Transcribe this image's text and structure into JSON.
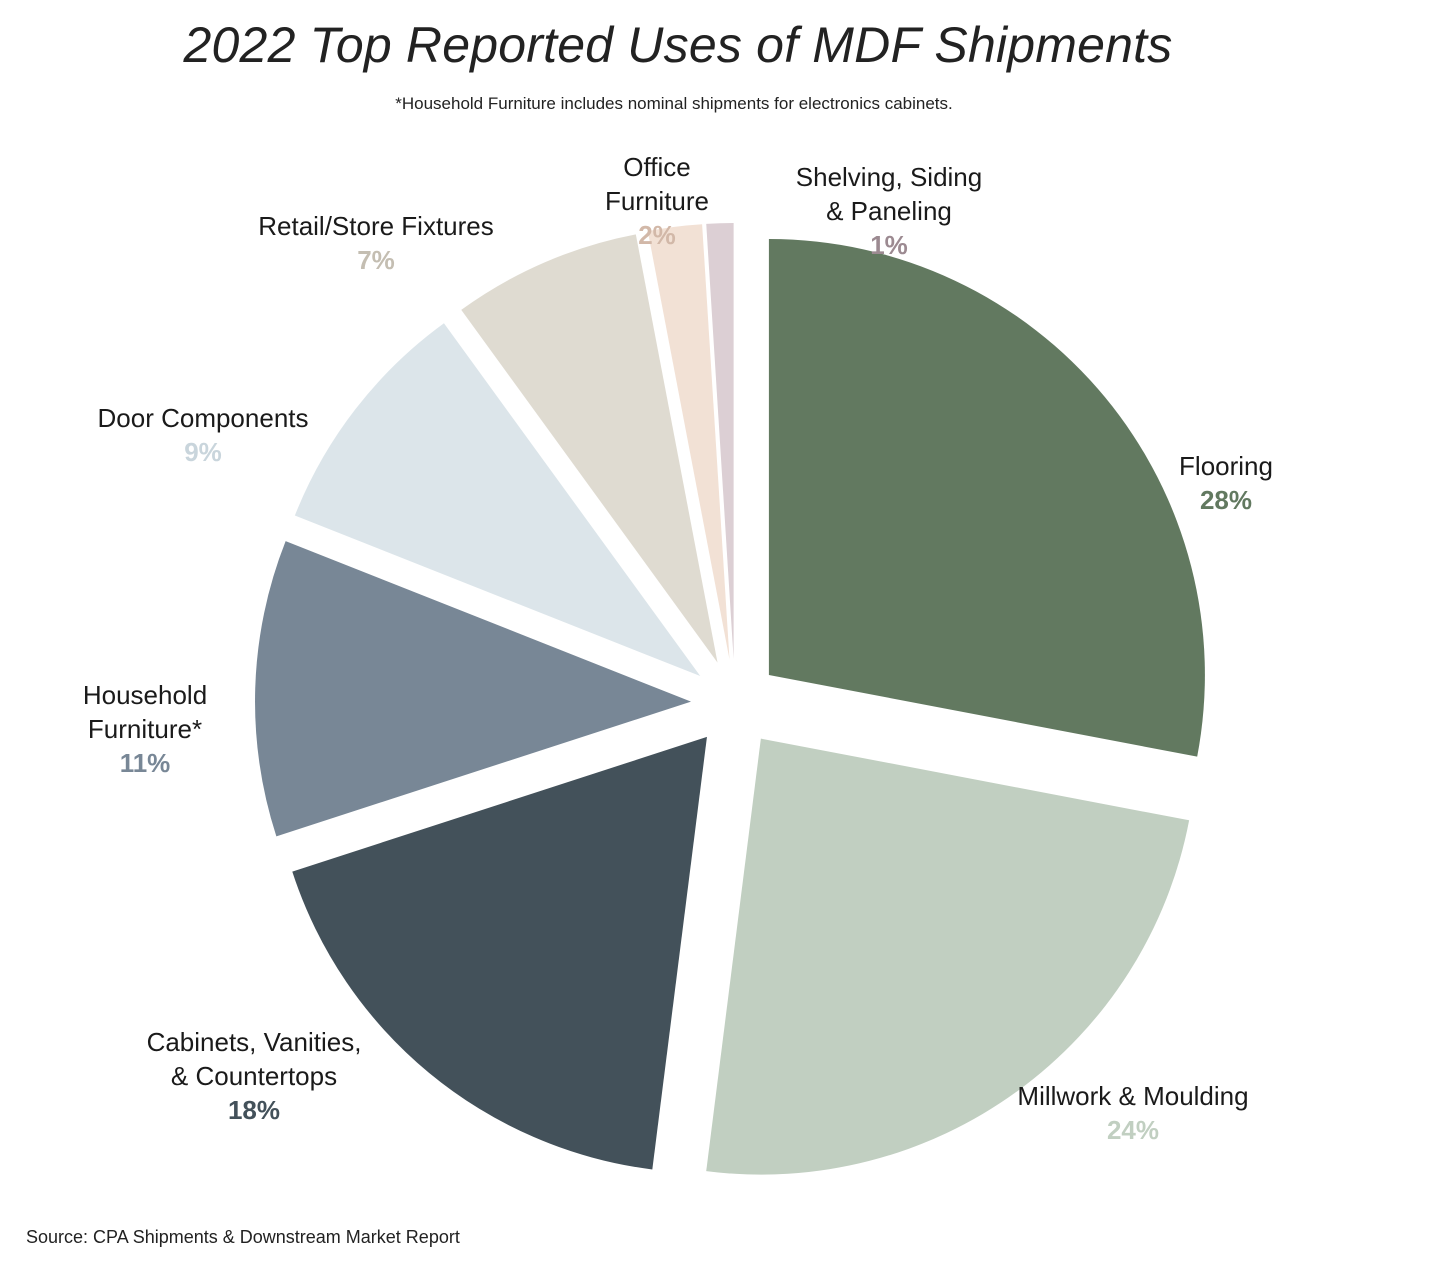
{
  "chart_data": {
    "type": "pie",
    "title": "2022 Top Reported Uses of MDF Shipments",
    "subtitle": "*Household Furniture includes nominal shipments for electronics cabinets.",
    "source": "Source: CPA Shipments & Downstream Market Report",
    "slices": [
      {
        "id": "flooring",
        "label_lines": [
          "Flooring"
        ],
        "value": 28,
        "value_label": "28%",
        "color": "#627960"
      },
      {
        "id": "millwork",
        "label_lines": [
          "Millwork & Moulding"
        ],
        "value": 24,
        "value_label": "24%",
        "color": "#c1cfc1"
      },
      {
        "id": "cabinets",
        "label_lines": [
          "Cabinets, Vanities,",
          "& Countertops"
        ],
        "value": 18,
        "value_label": "18%",
        "color": "#43515a"
      },
      {
        "id": "household",
        "label_lines": [
          "Household",
          "Furniture*"
        ],
        "value": 11,
        "value_label": "11%",
        "color": "#788796"
      },
      {
        "id": "door",
        "label_lines": [
          "Door Components"
        ],
        "value": 9,
        "value_label": "9%",
        "color": "#dce5ea"
      },
      {
        "id": "retail",
        "label_lines": [
          "Retail/Store Fixtures"
        ],
        "value": 7,
        "value_label": "7%",
        "color": "#dfdbd1"
      },
      {
        "id": "office",
        "label_lines": [
          "Office",
          "Furniture"
        ],
        "value": 2,
        "value_label": "2%",
        "color": "#f2e1d5"
      },
      {
        "id": "shelving",
        "label_lines": [
          "Shelving, Siding",
          "& Paneling"
        ],
        "value": 1,
        "value_label": "1%",
        "color": "#dccfd4"
      }
    ],
    "value_label_colors": {
      "flooring": "#627960",
      "millwork": "#c1cfc1",
      "cabinets": "#43515a",
      "household": "#788796",
      "door": "#c9d5dc",
      "retail": "#c4beb2",
      "office": "#d2b8a8",
      "shelving": "#9c8a91"
    },
    "exploded": true,
    "legend": "none"
  }
}
